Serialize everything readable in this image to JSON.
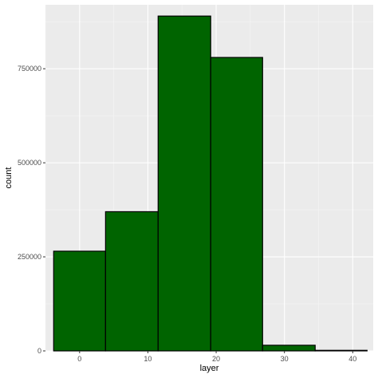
{
  "chart_data": {
    "type": "bar",
    "xlabel": "layer",
    "ylabel": "count",
    "xlim": [
      -5,
      43
    ],
    "ylim": [
      0,
      920000
    ],
    "x_ticks": [
      0,
      10,
      20,
      30,
      40
    ],
    "y_ticks": [
      0,
      250000,
      500000,
      750000
    ],
    "y_tick_labels": [
      "0",
      "250000",
      "500000",
      "750000"
    ],
    "bins": [
      {
        "x0": -3.8,
        "x1": 3.8,
        "count": 265000
      },
      {
        "x0": 3.8,
        "x1": 11.5,
        "count": 370000
      },
      {
        "x0": 11.5,
        "x1": 19.2,
        "count": 890000
      },
      {
        "x0": 19.2,
        "x1": 26.8,
        "count": 780000
      },
      {
        "x0": 26.8,
        "x1": 34.5,
        "count": 15000
      },
      {
        "x0": 34.5,
        "x1": 42.1,
        "count": 1500
      }
    ],
    "grid": true,
    "colors": {
      "fill": "#006400",
      "outline": "#000000",
      "panel": "#ebebeb",
      "grid_major": "#ffffff",
      "grid_minor": "#f5f5f5"
    }
  }
}
